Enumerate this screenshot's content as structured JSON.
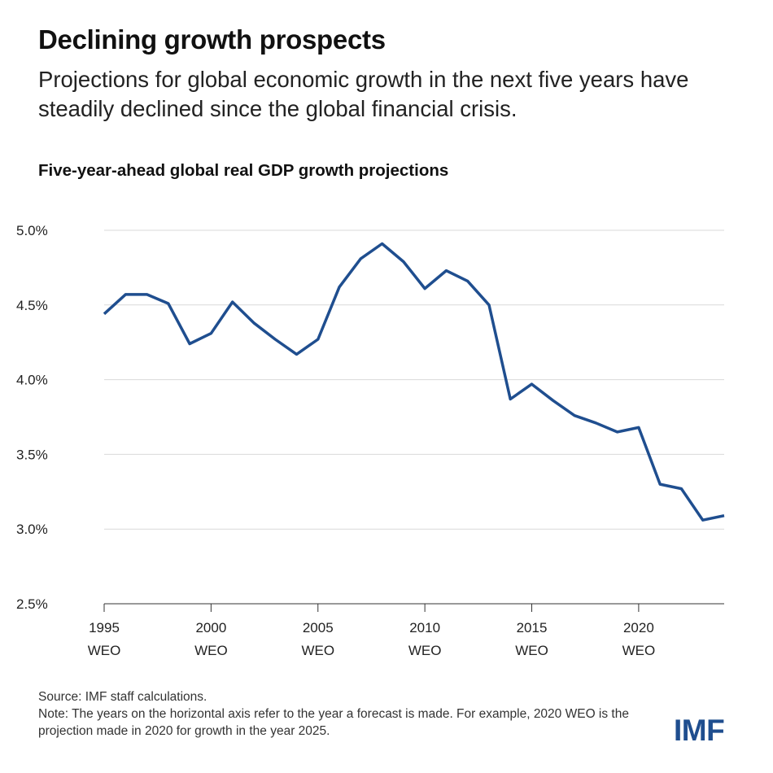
{
  "headline": "Declining growth prospects",
  "subtitle": "Projections for global economic growth in the next five years have steadily declined since the global financial crisis.",
  "footer": {
    "source": "Source: IMF staff calculations.",
    "note": "Note: The years on the horizontal axis refer to the year a forecast is made. For example, 2020 WEO is the projection made in 2020 for growth in the year 2025."
  },
  "logo": "IMF",
  "colors": {
    "line": "#1f4e8f",
    "grid": "#d9d9d9",
    "axis": "#333333"
  },
  "chart_data": {
    "type": "line",
    "title": "Five-year-ahead global real GDP growth projections",
    "xlabel": "",
    "ylabel": "",
    "x": [
      1995,
      1996,
      1997,
      1998,
      1999,
      2000,
      2001,
      2002,
      2003,
      2004,
      2005,
      2006,
      2007,
      2008,
      2009,
      2010,
      2011,
      2012,
      2013,
      2014,
      2015,
      2016,
      2017,
      2018,
      2019,
      2020,
      2021,
      2022,
      2023,
      2024
    ],
    "series": [
      {
        "name": "",
        "values": [
          4.44,
          4.57,
          4.57,
          4.51,
          4.24,
          4.31,
          4.52,
          4.38,
          4.27,
          4.17,
          4.27,
          4.62,
          4.81,
          4.91,
          4.79,
          4.61,
          4.73,
          4.66,
          4.5,
          3.87,
          3.97,
          3.86,
          3.76,
          3.71,
          3.65,
          3.68,
          3.3,
          3.27,
          3.06,
          3.09
        ]
      }
    ],
    "ylim": [
      2.5,
      5.0
    ],
    "yticks": [
      5.0,
      4.5,
      4.0,
      3.5,
      3.0,
      2.5
    ],
    "ytick_labels": [
      "5.0%",
      "4.5%",
      "4.0%",
      "3.5%",
      "3.0%",
      "2.5%"
    ],
    "xticks": [
      1995,
      2000,
      2005,
      2010,
      2015,
      2020
    ],
    "xtick_labels": [
      {
        "year": "1995",
        "sub": "WEO"
      },
      {
        "year": "2000",
        "sub": "WEO"
      },
      {
        "year": "2005",
        "sub": "WEO"
      },
      {
        "year": "2010",
        "sub": "WEO"
      },
      {
        "year": "2015",
        "sub": "WEO"
      },
      {
        "year": "2020",
        "sub": "WEO"
      }
    ],
    "grid": true,
    "legend": "none"
  }
}
